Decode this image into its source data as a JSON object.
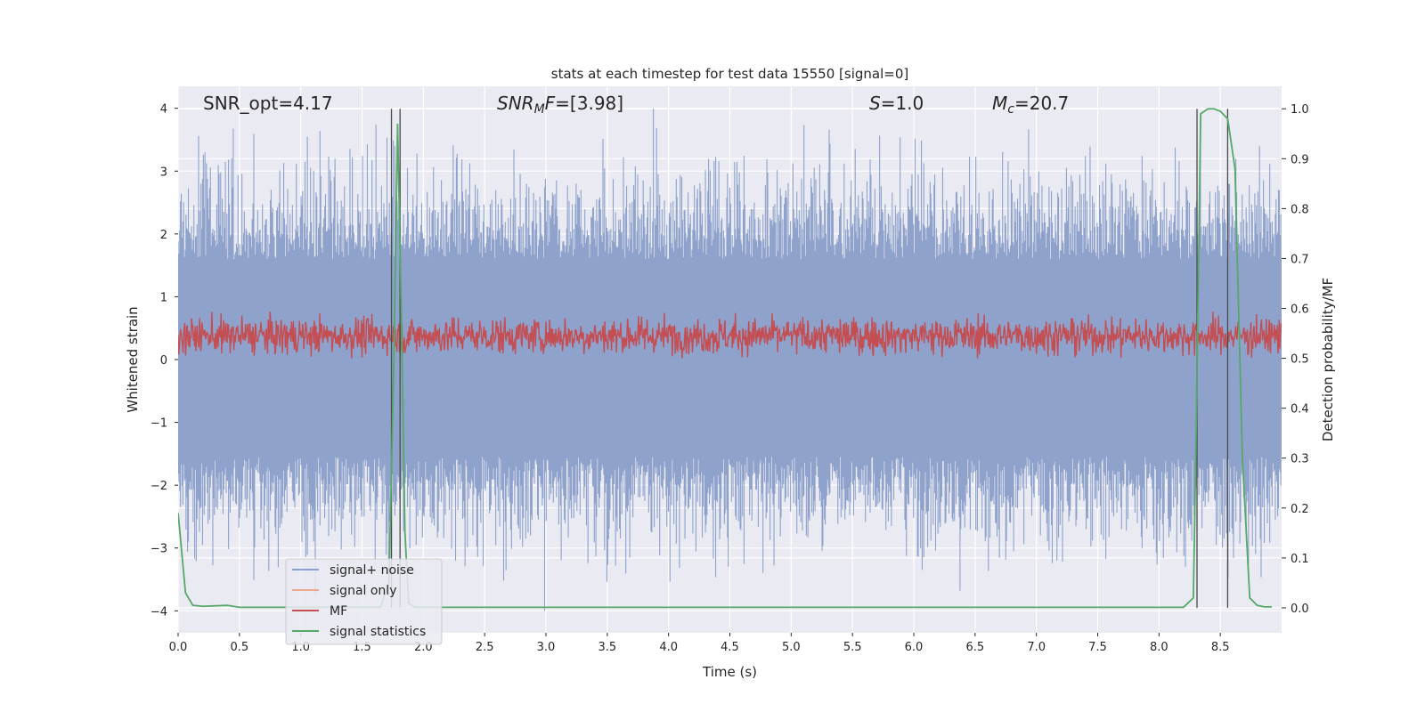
{
  "chart_data": {
    "type": "line",
    "title": "stats at each timestep for test data 15550 [signal=0]",
    "xlabel": "Time (s)",
    "ylabel": "Whitened strain",
    "y2label": "Detection probability/MF",
    "xlim": [
      0.0,
      9.0
    ],
    "ylim": [
      -4.35,
      4.35
    ],
    "y2lim": [
      -0.05,
      1.045
    ],
    "x_ticks": [
      "0.0",
      "0.5",
      "1.0",
      "1.5",
      "2.0",
      "2.5",
      "3.0",
      "3.5",
      "4.0",
      "4.5",
      "5.0",
      "5.5",
      "6.0",
      "6.5",
      "7.0",
      "7.5",
      "8.0",
      "8.5"
    ],
    "x_tick_values": [
      0.0,
      0.5,
      1.0,
      1.5,
      2.0,
      2.5,
      3.0,
      3.5,
      4.0,
      4.5,
      5.0,
      5.5,
      6.0,
      6.5,
      7.0,
      7.5,
      8.0,
      8.5
    ],
    "y_ticks": [
      "−4",
      "−3",
      "−2",
      "−1",
      "0",
      "1",
      "2",
      "3",
      "4"
    ],
    "y_tick_values": [
      -4,
      -3,
      -2,
      -1,
      0,
      1,
      2,
      3,
      4
    ],
    "y2_ticks": [
      "0.0",
      "0.1",
      "0.2",
      "0.3",
      "0.4",
      "0.5",
      "0.6",
      "0.7",
      "0.8",
      "0.9",
      "1.0"
    ],
    "y2_tick_values": [
      0.0,
      0.1,
      0.2,
      0.3,
      0.4,
      0.5,
      0.6,
      0.7,
      0.8,
      0.9,
      1.0
    ],
    "grid": true,
    "legend_position": "lower-left",
    "legend": [
      {
        "name": "signal+ noise",
        "color": "#8ea2cc"
      },
      {
        "name": "signal only",
        "color": "#e9a98c"
      },
      {
        "name": "MF",
        "color": "#c44e52"
      },
      {
        "name": "signal statistics",
        "color": "#55a868"
      }
    ],
    "annotations": {
      "snr_opt": "SNR_opt=4.17",
      "snr_mf_sym": "SNR",
      "snr_mf_sub": "M",
      "snr_mf_rest": "F",
      "snr_mf_val": "=[3.98]",
      "s_sym": "S",
      "s_val": "=1.0",
      "mc_sym": "M",
      "mc_sub": "c",
      "mc_val": "=20.7"
    },
    "series": [
      {
        "name": "signal+ noise",
        "kind": "noise-band",
        "color": "#8ea2cc",
        "core_range": [
          -1.55,
          1.6
        ],
        "extreme_range": [
          -4.0,
          4.0
        ],
        "sample_count": 1400
      },
      {
        "name": "MF",
        "kind": "noise-band",
        "axis": "right",
        "color": "#c44e52",
        "range": [
          0.5,
          0.6
        ],
        "mean": 0.545,
        "sample_count": 1800
      },
      {
        "name": "signal statistics",
        "axis": "right",
        "color": "#55a868",
        "x": [
          0.0,
          0.06,
          0.12,
          0.2,
          0.4,
          0.5,
          1.0,
          1.65,
          1.72,
          1.76,
          1.79,
          1.82,
          1.85,
          1.88,
          1.93,
          2.0,
          8.2,
          8.28,
          8.3,
          8.34,
          8.4,
          8.45,
          8.5,
          8.56,
          8.62,
          8.68,
          8.74,
          8.8,
          8.86,
          8.92
        ],
        "y": [
          0.19,
          0.03,
          0.005,
          0.003,
          0.005,
          0.001,
          0.001,
          0.001,
          0.05,
          0.5,
          0.97,
          0.6,
          0.15,
          0.01,
          0.001,
          0.001,
          0.001,
          0.02,
          0.3,
          0.99,
          1.0,
          1.0,
          0.995,
          0.98,
          0.88,
          0.3,
          0.02,
          0.005,
          0.002,
          0.002
        ]
      }
    ],
    "vertical_lines": {
      "color": "#4a4a4a",
      "x": [
        1.74,
        1.81,
        8.31,
        8.56
      ]
    }
  }
}
